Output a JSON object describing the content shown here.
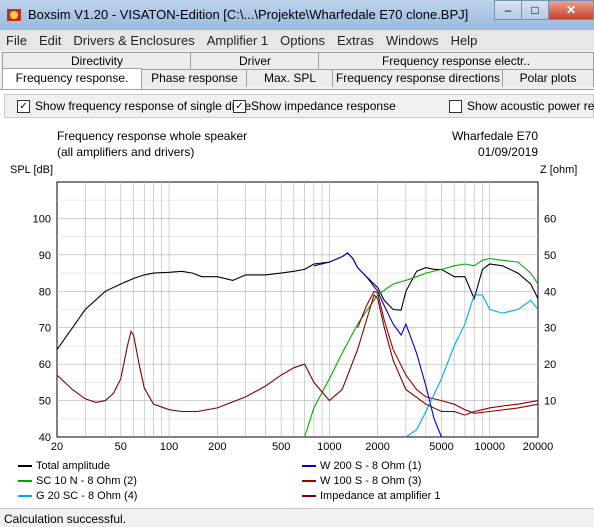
{
  "window": {
    "title": "Boxsim V1.20 - VISATON-Edition [C:\\...\\Projekte\\Wharfedale E70 clone.BPJ]"
  },
  "menu": [
    "File",
    "Edit",
    "Drivers & Enclosures",
    "Amplifier 1",
    "Options",
    "Extras",
    "Windows",
    "Help"
  ],
  "tabs_row1": [
    "Directivity",
    "Driver",
    "Frequency response electr.."
  ],
  "tabs_row2": [
    "Frequency response.",
    "Phase response",
    "Max. SPL",
    "Frequency response directions",
    "Polar plots"
  ],
  "options": [
    {
      "label": "Show frequency response of single drive",
      "checked": true
    },
    {
      "label": "Show impedance response",
      "checked": true
    },
    {
      "label": "Show acoustic power res",
      "checked": false
    }
  ],
  "chart_header": {
    "title_line1": "Frequency response whole speaker",
    "title_line2": "(all amplifiers and drivers)",
    "project": "Wharfedale E70",
    "date": "01/09/2019",
    "left_unit": "SPL [dB]",
    "right_unit": "Z [ohm]"
  },
  "chart_data": {
    "type": "line",
    "x_scale": "log",
    "xlim": [
      20,
      20000
    ],
    "ylim": [
      40,
      110
    ],
    "y2lim": [
      0,
      70
    ],
    "x_ticks": [
      "20",
      "50",
      "100",
      "200",
      "500",
      "1000",
      "2000",
      "5000",
      "10000",
      "20000"
    ],
    "y_ticks": [
      "40",
      "50",
      "60",
      "70",
      "80",
      "90",
      "100"
    ],
    "y2_ticks": [
      "10",
      "20",
      "30",
      "40",
      "50",
      "60"
    ],
    "grid": true,
    "series": [
      {
        "name": "Total amplitude",
        "color": "#000000",
        "axis": "left",
        "x": [
          20,
          25,
          30,
          40,
          50,
          60,
          70,
          80,
          100,
          120,
          140,
          160,
          200,
          250,
          300,
          400,
          500,
          600,
          700,
          800,
          1000,
          1200,
          1300,
          1400,
          1500,
          1700,
          2000,
          2200,
          2500,
          2800,
          3000,
          3500,
          4000,
          4500,
          5000,
          6000,
          7000,
          8000,
          9000,
          10000,
          12000,
          15000,
          18000,
          20000
        ],
        "y": [
          64,
          70,
          75,
          80,
          82,
          83.5,
          84.5,
          85,
          85.2,
          85.5,
          85,
          84,
          84,
          83,
          84.5,
          84.5,
          85,
          85.5,
          86,
          87.5,
          88,
          89.5,
          90.5,
          89,
          86.5,
          84,
          81,
          77.5,
          75,
          74.8,
          80,
          85.5,
          86.5,
          86,
          86,
          84,
          84,
          78,
          86,
          87.5,
          87,
          85,
          82,
          78
        ]
      },
      {
        "name": "W 200 S - 8 Ohm (1)",
        "color": "#0000cc",
        "axis": "left",
        "x": [
          800,
          1000,
          1200,
          1300,
          1400,
          1500,
          1700,
          2000,
          2200,
          2500,
          2800,
          3000,
          3500,
          4000,
          4500,
          5000
        ],
        "y": [
          87,
          88,
          89.5,
          90.5,
          89,
          86.5,
          84,
          80,
          76,
          71,
          68,
          71,
          63,
          54,
          45,
          40
        ]
      },
      {
        "name": "SC 10 N - 8 Ohm (2)",
        "color": "#00aa00",
        "axis": "left",
        "x": [
          700,
          800,
          1000,
          1200,
          1500,
          2000,
          2500,
          3000,
          3500,
          4000,
          5000,
          6000,
          7000,
          8000,
          9000,
          10000,
          12000,
          15000,
          18000,
          20000
        ],
        "y": [
          40,
          48,
          56,
          63,
          71,
          79,
          82,
          83,
          84,
          85,
          86,
          87,
          87.5,
          87,
          88.5,
          89,
          88.5,
          88,
          85,
          82
        ]
      },
      {
        "name": "W 100 S - 8 Ohm (3)",
        "color": "#990000",
        "axis": "left",
        "x": [
          1500,
          1700,
          1900,
          2000,
          2200,
          2500,
          3000,
          3500,
          4000,
          5000,
          6000,
          7000,
          8000,
          10000,
          15000,
          20000
        ],
        "y": [
          70,
          76,
          80,
          79.5,
          72,
          64,
          57,
          53,
          51,
          50,
          49,
          47.5,
          46.5,
          47,
          48,
          49
        ]
      },
      {
        "name": "G 20 SC - 8 Ohm (4)",
        "color": "#00aaee",
        "axis": "left",
        "x": [
          3000,
          3500,
          4000,
          5000,
          6000,
          7000,
          8000,
          9000,
          10000,
          12000,
          15000,
          18000,
          20000
        ],
        "y": [
          40,
          42,
          47,
          56,
          65,
          71,
          79,
          79,
          75,
          74,
          75,
          77.5,
          75
        ]
      },
      {
        "name": "Impedance at amplifier 1",
        "color": "#800000",
        "axis": "right",
        "x": [
          20,
          25,
          30,
          35,
          40,
          45,
          50,
          55,
          58,
          60,
          65,
          70,
          80,
          100,
          120,
          150,
          200,
          300,
          400,
          500,
          600,
          700,
          800,
          1000,
          1200,
          1500,
          1700,
          1900,
          2000,
          2200,
          2500,
          3000,
          4000,
          5000,
          6000,
          7000,
          8000,
          9000,
          10000,
          12000,
          15000,
          20000
        ],
        "y": [
          17,
          13,
          10.5,
          9.5,
          10,
          12,
          16,
          25,
          29,
          28,
          20,
          13.5,
          9,
          7.5,
          7,
          7,
          8,
          11,
          14,
          17,
          19,
          20,
          15,
          10,
          13,
          24,
          32,
          39,
          38,
          30,
          21,
          13,
          9,
          7,
          7,
          6,
          7,
          7.5,
          8,
          8.5,
          9,
          10
        ]
      }
    ]
  },
  "legend": [
    {
      "name": "Total amplitude",
      "color": "#000000"
    },
    {
      "name": "W 200 S - 8 Ohm (1)",
      "color": "#0000cc"
    },
    {
      "name": "SC 10 N - 8 Ohm (2)",
      "color": "#00aa00"
    },
    {
      "name": "W 100 S - 8 Ohm (3)",
      "color": "#990000"
    },
    {
      "name": "G 20 SC - 8 Ohm (4)",
      "color": "#00aaee"
    },
    {
      "name": "Impedance at amplifier 1",
      "color": "#800000"
    }
  ],
  "status": "Calculation successful."
}
